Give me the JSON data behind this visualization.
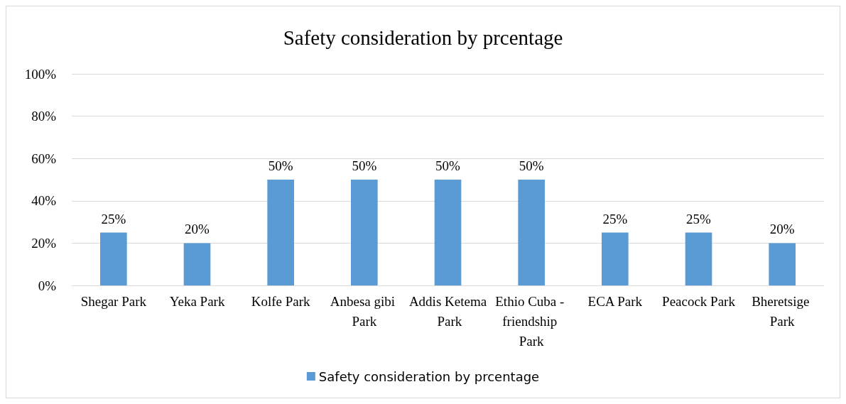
{
  "chart_data": {
    "type": "bar",
    "title": "Safety consideration by prcentage",
    "categories": [
      "Shegar Park",
      "Yeka Park",
      "Kolfe Park",
      "Anbesa gibi Park",
      "Addis Ketema Park",
      "Ethio Cuba - friendship Park",
      "ECA Park",
      "Peacock Park",
      "Bheretsige Park"
    ],
    "series": [
      {
        "name": "Safety consideration by prcentage",
        "color": "#5b9bd5",
        "values": [
          25,
          20,
          50,
          50,
          50,
          50,
          25,
          25,
          20
        ],
        "value_labels": [
          "25%",
          "20%",
          "50%",
          "50%",
          "50%",
          "50%",
          "25%",
          "25%",
          "20%"
        ]
      }
    ],
    "ylim": [
      0,
      100
    ],
    "yticks": [
      {
        "value": 0,
        "label": "0%"
      },
      {
        "value": 20,
        "label": "20%"
      },
      {
        "value": 40,
        "label": "40%"
      },
      {
        "value": 60,
        "label": "60%"
      },
      {
        "value": 80,
        "label": "80%"
      },
      {
        "value": 100,
        "label": "100%"
      }
    ],
    "grid": "y",
    "legend": "bottom"
  }
}
